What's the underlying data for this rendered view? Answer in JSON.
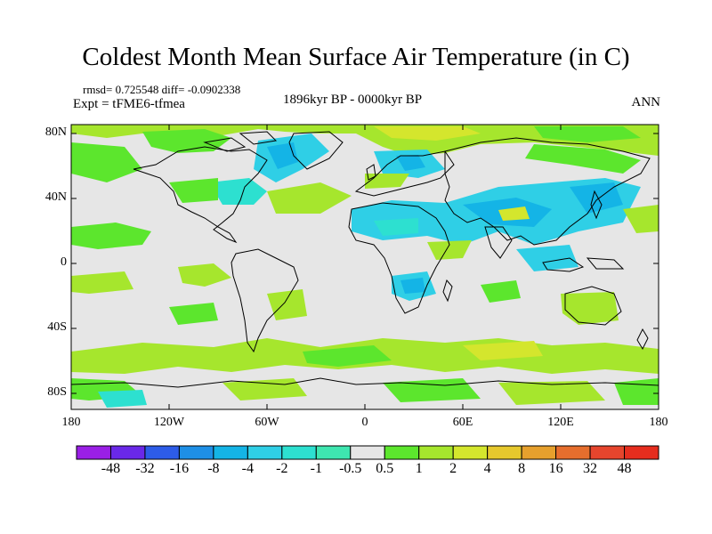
{
  "title": "Coldest Month Mean Surface Air Temperature (in C)",
  "stats": "rmsd= 0.725548 diff= -0.0902338",
  "experiment": "Expt = tFME6-tfmea",
  "period": "1896kyr BP - 0000kyr BP",
  "season": "ANN",
  "y_axis_labels": [
    "80N",
    "40N",
    "0",
    "40S",
    "80S"
  ],
  "x_axis_labels": [
    "180",
    "120W",
    "60W",
    "0",
    "60E",
    "120E",
    "180"
  ],
  "colorbar": {
    "labels": [
      "-48",
      "-32",
      "-16",
      "-8",
      "-4",
      "-2",
      "-1",
      "-0.5",
      "0.5",
      "1",
      "2",
      "4",
      "8",
      "16",
      "32",
      "48"
    ],
    "colors": [
      "#9a1fe6",
      "#6a28e8",
      "#2d5ce8",
      "#1e8fe6",
      "#14b4e6",
      "#2fcfe6",
      "#2de0d0",
      "#3ee6b0",
      "#e6e6e6",
      "#5ce62d",
      "#a6e62d",
      "#d4e62d",
      "#e6c82d",
      "#e6a02d",
      "#e66e2d",
      "#e6452d",
      "#e62d1e"
    ]
  },
  "colors": {
    "neutral": "#e6e6e6",
    "light_green": "#5ce62d",
    "yellow_green": "#a6e62d",
    "lime": "#d4e62d",
    "cyan": "#2fcfe6",
    "teal": "#2de0d0",
    "light_blue": "#14b4e6",
    "blue": "#1e8fe6",
    "coastline": "#000000"
  }
}
